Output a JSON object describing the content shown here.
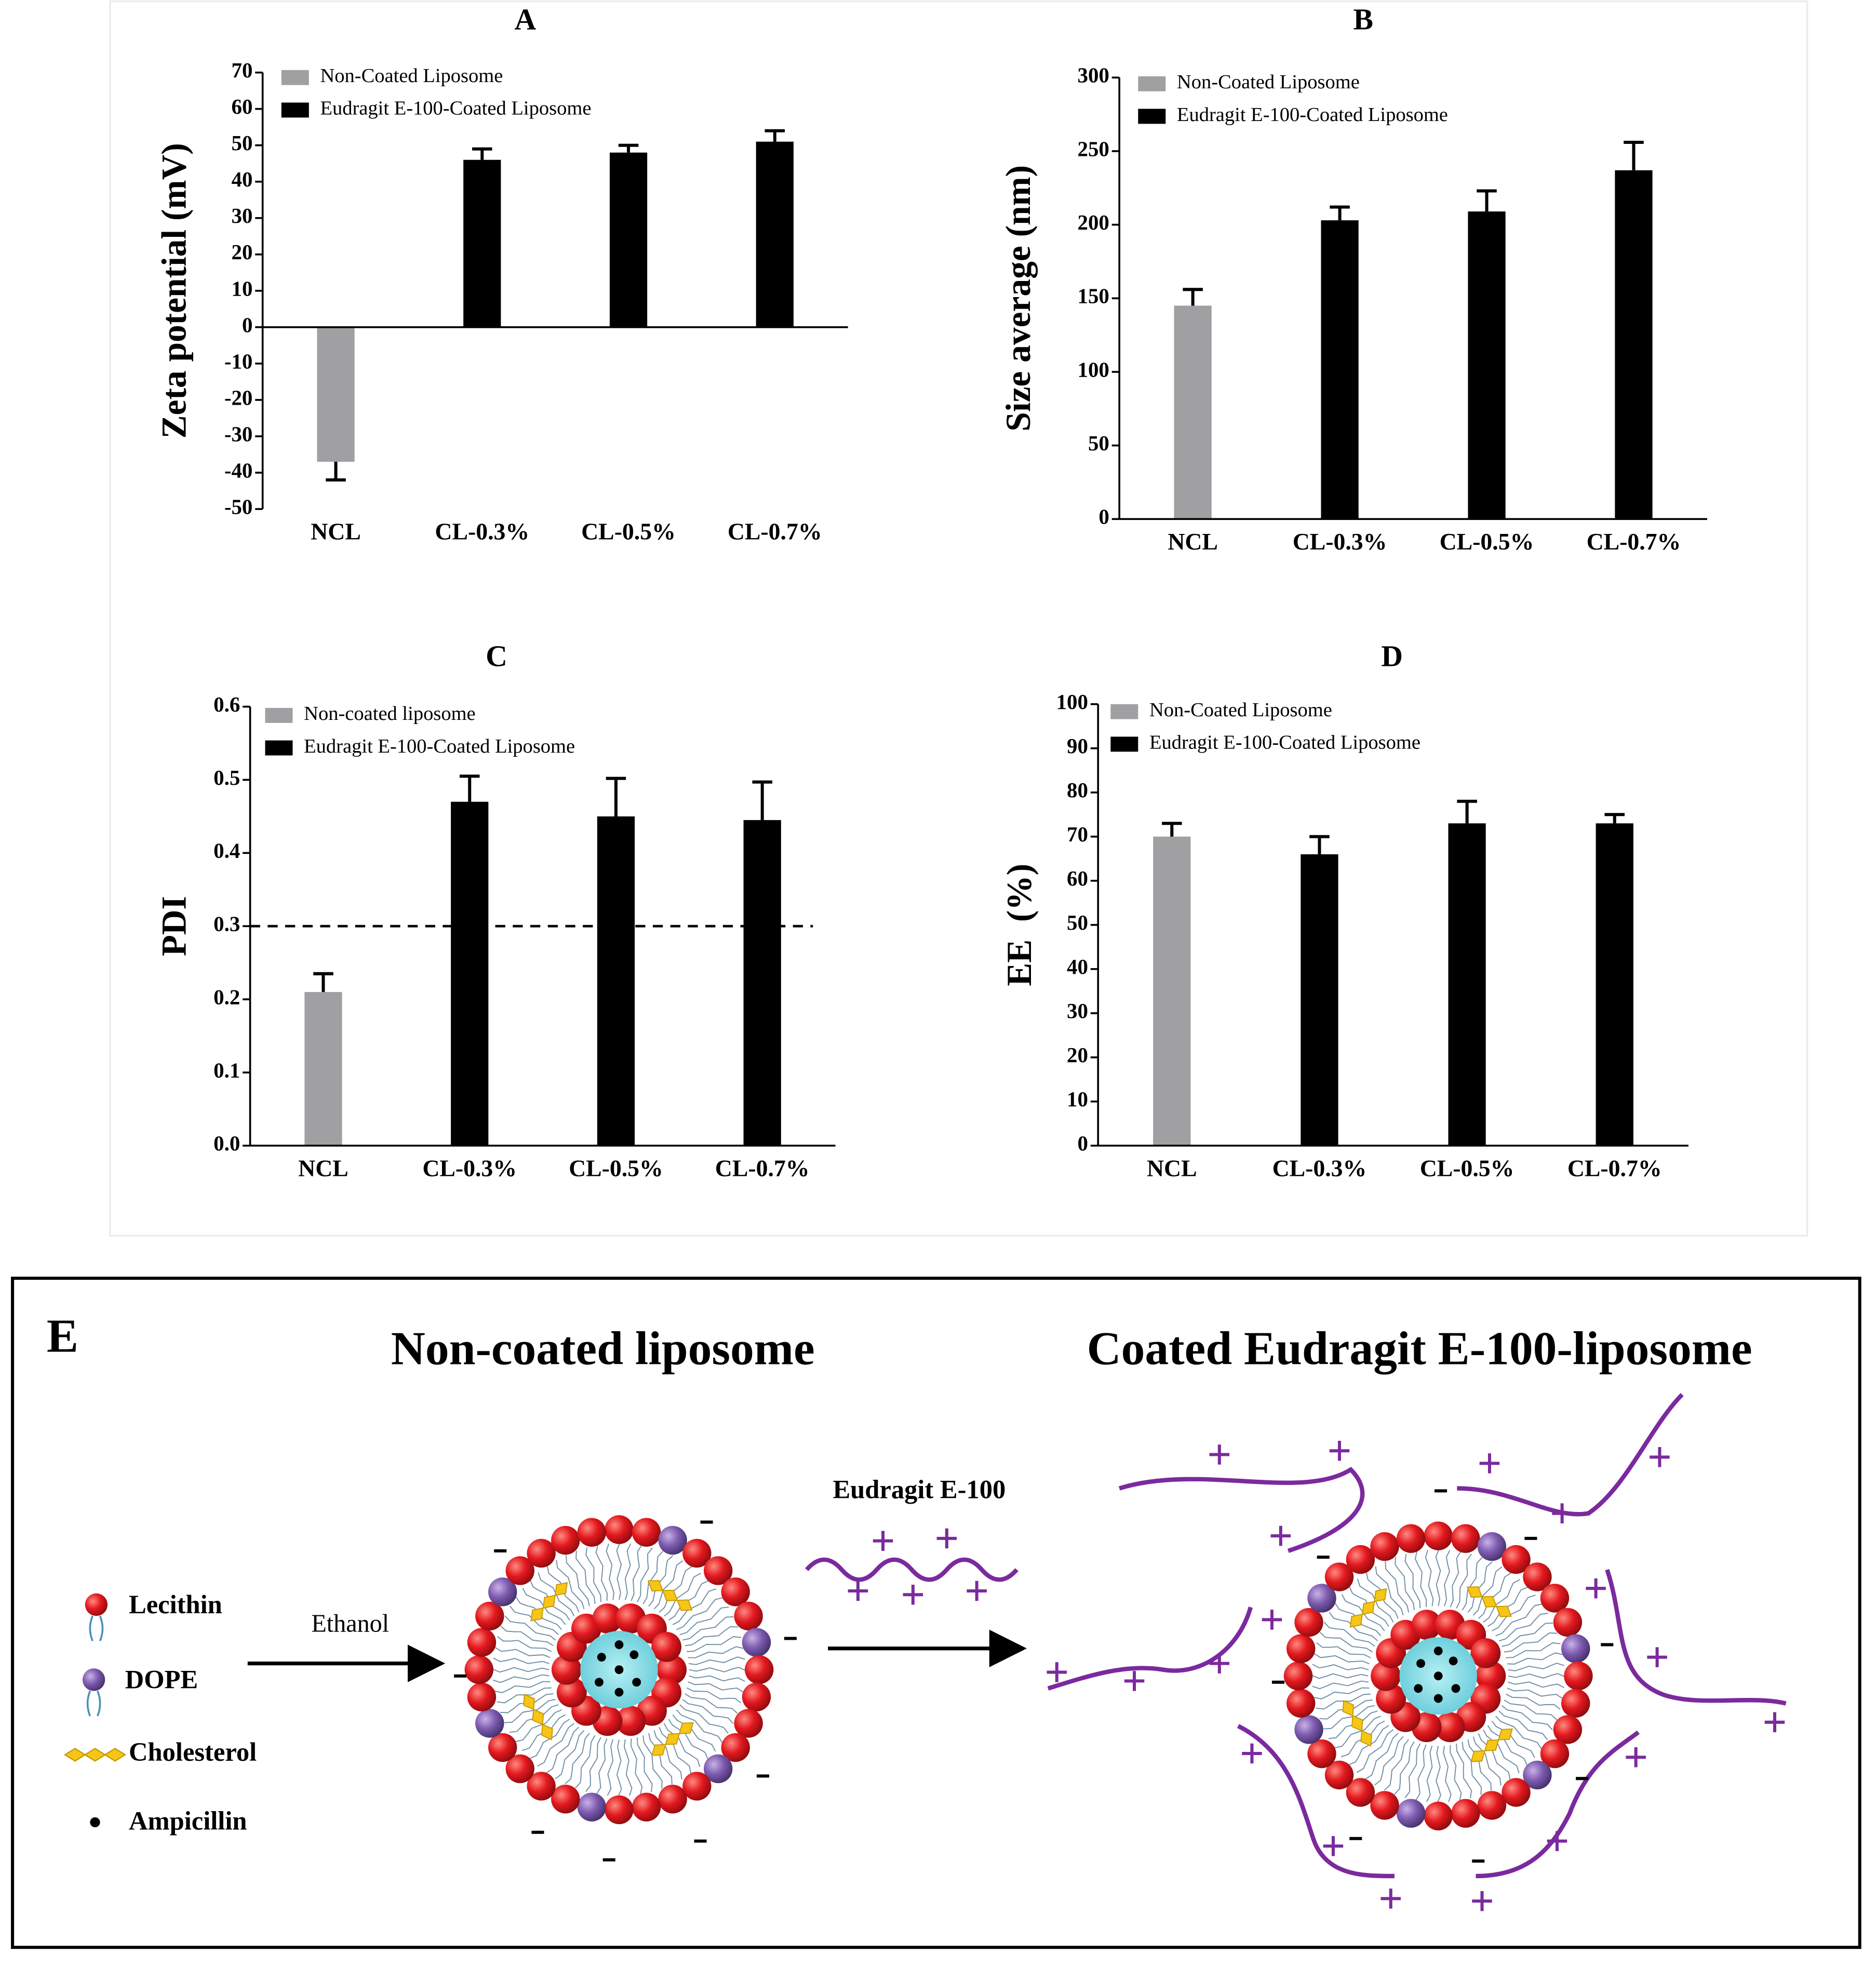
{
  "chart_data": [
    {
      "type": "bar",
      "title": "A",
      "y_label": "Zeta potential (mV)",
      "categories": [
        "NCL",
        "CL-0.3%",
        "CL-0.5%",
        "CL-0.7%"
      ],
      "series": [
        {
          "name": "Non-Coated Liposome",
          "color": "#a0a0a2",
          "values": [
            -37,
            null,
            null,
            null
          ],
          "errors": [
            5,
            null,
            null,
            null
          ]
        },
        {
          "name": "Eudragit E-100-Coated Liposome",
          "color": "#000000",
          "values": [
            null,
            46,
            48,
            51
          ],
          "errors": [
            null,
            3,
            2,
            3
          ]
        }
      ],
      "ylim": [
        -50,
        70
      ],
      "yticks": [
        -50,
        -40,
        -30,
        -20,
        -10,
        0,
        10,
        20,
        30,
        40,
        50,
        60,
        70
      ]
    },
    {
      "type": "bar",
      "title": "B",
      "y_label": "Size average (nm)",
      "categories": [
        "NCL",
        "CL-0.3%",
        "CL-0.5%",
        "CL-0.7%"
      ],
      "series": [
        {
          "name": "Non-Coated Liposome",
          "color": "#a0a0a2",
          "values": [
            145,
            null,
            null,
            null
          ],
          "errors": [
            11,
            null,
            null,
            null
          ]
        },
        {
          "name": "Eudragit E-100-Coated Liposome",
          "color": "#000000",
          "values": [
            null,
            203,
            209,
            237
          ],
          "errors": [
            null,
            9,
            14,
            19
          ]
        }
      ],
      "ylim": [
        0,
        300
      ],
      "yticks": [
        0,
        50,
        100,
        150,
        200,
        250,
        300
      ]
    },
    {
      "type": "bar",
      "title": "C",
      "y_label": "PDI",
      "categories": [
        "NCL",
        "CL-0.3%",
        "CL-0.5%",
        "CL-0.7%"
      ],
      "series": [
        {
          "name": "Non-coated liposome",
          "color": "#a0a0a2",
          "values": [
            0.21,
            null,
            null,
            null
          ],
          "errors": [
            0.025,
            null,
            null,
            null
          ]
        },
        {
          "name": "Eudragit E-100-Coated Liposome",
          "color": "#000000",
          "values": [
            null,
            0.47,
            0.45,
            0.445
          ],
          "errors": [
            null,
            0.035,
            0.052,
            0.052
          ]
        }
      ],
      "ylim": [
        0,
        0.6
      ],
      "yticks": [
        {
          "value": 0,
          "label": "0.0"
        },
        0.1,
        0.2,
        0.3,
        0.4,
        0.5,
        0.6
      ],
      "reference_line": 0.3
    },
    {
      "type": "bar",
      "title": "D",
      "y_label": "EE  (%)",
      "categories": [
        "NCL",
        "CL-0.3%",
        "CL-0.5%",
        "CL-0.7%"
      ],
      "series": [
        {
          "name": "Non-Coated Liposome",
          "color": "#a0a0a2",
          "values": [
            70,
            null,
            null,
            null
          ],
          "errors": [
            3,
            null,
            null,
            null
          ]
        },
        {
          "name": "Eudragit E-100-Coated Liposome",
          "color": "#000000",
          "values": [
            null,
            66,
            73,
            73
          ],
          "errors": [
            null,
            4,
            5,
            2
          ]
        }
      ],
      "ylim": [
        0,
        100
      ],
      "yticks": [
        0,
        10,
        20,
        30,
        40,
        50,
        60,
        70,
        80,
        90,
        100
      ]
    }
  ],
  "diagram": {
    "label": "E",
    "left_title": "Non-coated liposome",
    "right_title": "Coated Eudragit E-100-liposome",
    "legend": [
      "Lecithin",
      "DOPE",
      "Cholesterol",
      "Ampicillin"
    ],
    "step1": "Ethanol",
    "step2": "Eudragit E-100"
  }
}
